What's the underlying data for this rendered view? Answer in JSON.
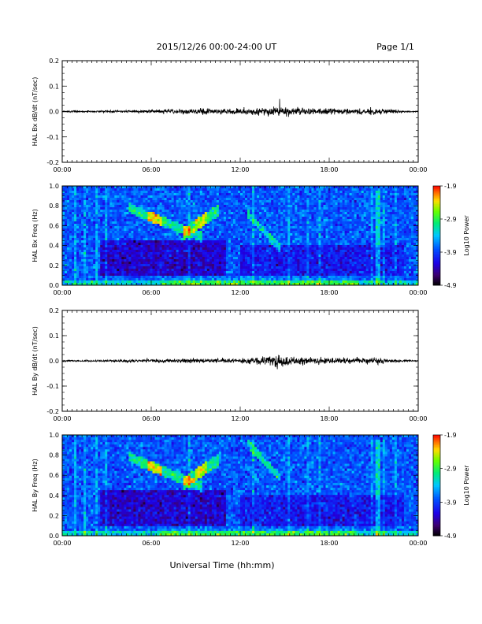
{
  "header": {
    "title": "2015/12/26  00:00-24:00 UT",
    "page": "Page 1/1"
  },
  "footer": {
    "xlabel": "Universal Time (hh:mm)"
  },
  "chart_data": [
    {
      "type": "line",
      "ylabel": "HAL Bx dB/dt (nT/sec)",
      "x_ticks": [
        "00:00",
        "06:00",
        "12:00",
        "18:00",
        "00:00"
      ],
      "y_ticks": [
        "0.2",
        "0.1",
        "0.0",
        "-0.1",
        "-0.2"
      ],
      "xlim": [
        0,
        24
      ],
      "ylim": [
        -0.2,
        0.2
      ],
      "activity_envelope": {
        "hours": [
          0,
          3,
          5,
          6,
          8,
          10,
          12,
          13,
          14,
          14.5,
          15,
          16,
          17,
          18,
          19,
          20,
          21,
          22,
          23,
          24
        ],
        "amplitude": [
          0.002,
          0.003,
          0.004,
          0.005,
          0.007,
          0.008,
          0.008,
          0.009,
          0.013,
          0.016,
          0.014,
          0.011,
          0.01,
          0.009,
          0.009,
          0.008,
          0.01,
          0.006,
          0.003,
          0.002
        ]
      }
    },
    {
      "type": "heatmap",
      "ylabel": "HAL Bx Freq (Hz)",
      "x_ticks": [
        "00:00",
        "06:00",
        "12:00",
        "18:00",
        "00:00"
      ],
      "y_ticks": [
        "1.0",
        "0.8",
        "0.6",
        "0.4",
        "0.2",
        "0.0"
      ],
      "xlim": [
        0,
        24
      ],
      "ylim": [
        0,
        1.0
      ],
      "colorbar": {
        "label": "Log10 Power",
        "ticks": [
          "-1.9",
          "-2.9",
          "-3.9",
          "-4.9"
        ],
        "range": [
          -4.9,
          -1.9
        ]
      }
    },
    {
      "type": "line",
      "ylabel": "HAL By dB/dt (nT/sec)",
      "x_ticks": [
        "00:00",
        "06:00",
        "12:00",
        "18:00",
        "00:00"
      ],
      "y_ticks": [
        "0.2",
        "0.1",
        "0.0",
        "-0.1",
        "-0.2"
      ],
      "xlim": [
        0,
        24
      ],
      "ylim": [
        -0.2,
        0.2
      ],
      "activity_envelope": {
        "hours": [
          0,
          3,
          5,
          6,
          8,
          10,
          12,
          13,
          14,
          14.5,
          15,
          16,
          17,
          18,
          19,
          20,
          21,
          22,
          23,
          24
        ],
        "amplitude": [
          0.002,
          0.003,
          0.004,
          0.005,
          0.006,
          0.007,
          0.007,
          0.009,
          0.012,
          0.02,
          0.013,
          0.011,
          0.01,
          0.008,
          0.009,
          0.008,
          0.011,
          0.006,
          0.003,
          0.002
        ]
      }
    },
    {
      "type": "heatmap",
      "ylabel": "HAL By Freq (Hz)",
      "x_ticks": [
        "00:00",
        "06:00",
        "12:00",
        "18:00",
        "00:00"
      ],
      "y_ticks": [
        "1.0",
        "0.8",
        "0.6",
        "0.4",
        "0.2",
        "0.0"
      ],
      "xlim": [
        0,
        24
      ],
      "ylim": [
        0,
        1.0
      ],
      "colorbar": {
        "label": "Log10 Power",
        "ticks": [
          "-1.9",
          "-2.9",
          "-3.9",
          "-4.9"
        ],
        "range": [
          -4.9,
          -1.9
        ]
      }
    }
  ]
}
